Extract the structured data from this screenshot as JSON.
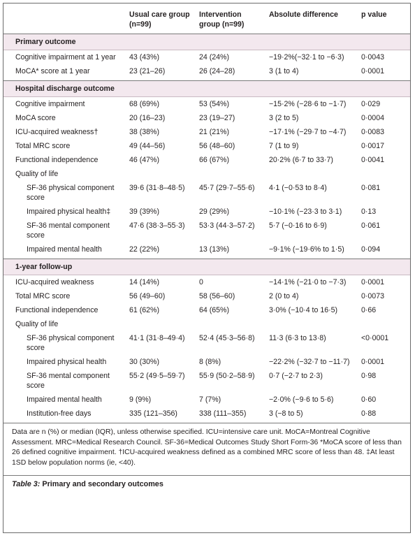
{
  "table": {
    "header": [
      "Usual care group (n=99)",
      "Intervention group (n=99)",
      "Absolute difference",
      "p value"
    ],
    "sections": [
      {
        "title": "Primary outcome",
        "rows": [
          [
            "Cognitive impairment at 1 year",
            "43 (43%)",
            "24 (24%)",
            "−19·2%(−32·1 to −6·3)",
            "0·0043"
          ],
          [
            "MoCA* score at 1 year",
            "23 (21–26)",
            "26 (24–28)",
            "3 (1 to 4)",
            "0·0001"
          ]
        ]
      },
      {
        "title": "Hospital discharge outcome",
        "rows": [
          [
            "Cognitive impairment",
            "68 (69%)",
            "53 (54%)",
            "−15·2% (−28·6 to −1·7)",
            "0·029"
          ],
          [
            "MoCA score",
            "20 (16–23)",
            "23 (19–27)",
            "3 (2 to 5)",
            "0·0004"
          ],
          [
            "ICU-acquired weakness†",
            "38 (38%)",
            "21 (21%)",
            "−17·1% (−29·7 to −4·7)",
            "0·0083"
          ],
          [
            "Total MRC score",
            "49 (44–56)",
            "56 (48–60)",
            "7 (1 to 9)",
            "0·0017"
          ],
          [
            "Functional independence",
            "46 (47%)",
            "66 (67%)",
            "20·2% (6·7 to 33·7)",
            "0·0041"
          ],
          {
            "label": "Quality of life",
            "rows": [
              [
                "SF-36 physical component score",
                "39·6 (31·8–48·5)",
                "45·7 (29·7–55·6)",
                "4·1 (−0·53 to 8·4)",
                "0·081"
              ],
              [
                "Impaired physical health‡",
                "39 (39%)",
                "29 (29%)",
                "−10·1% (−23·3 to 3·1)",
                "0·13"
              ],
              [
                "SF-36 mental component score",
                "47·6 (38·3–55·3)",
                "53·3 (44·3–57·2)",
                "5·7 (−0·16 to 6·9)",
                "0·061"
              ],
              [
                "Impaired mental health",
                "22 (22%)",
                "13 (13%)",
                "−9·1% (−19·6% to 1·5)",
                "0·094"
              ]
            ]
          }
        ]
      },
      {
        "title": "1-year follow-up",
        "rows": [
          [
            "ICU-acquired weakness",
            "14 (14%)",
            "0",
            "−14·1% (−21·0 to −7·3)",
            "0·0001"
          ],
          [
            "Total MRC score",
            "56 (49–60)",
            "58 (56–60)",
            "2 (0 to 4)",
            "0·0073"
          ],
          [
            "Functional independence",
            "61 (62%)",
            "64 (65%)",
            "3·0% (−10·4 to 16·5)",
            "0·66"
          ],
          {
            "label": "Quality of life",
            "rows": [
              [
                "SF-36 physical component score",
                "41·1 (31·8–49·4)",
                "52·4 (45·3–56·8)",
                "11·3 (6·3 to 13·8)",
                "<0·0001"
              ],
              [
                "Impaired physical health",
                "30 (30%)",
                "8 (8%)",
                "−22·2% (−32·7 to −11·7)",
                "0·0001"
              ],
              [
                "SF-36 mental component score",
                "55·2 (49·5–59·7)",
                "55·9 (50·2–58·9)",
                "0·7 (−2·7 to 2·3)",
                "0·98"
              ],
              [
                "Impaired mental health",
                "9 (9%)",
                "7 (7%)",
                "−2·0% (−9·6 to 5·6)",
                "0·60"
              ],
              [
                "Institution-free days",
                "335 (121–356)",
                "338 (111–355)",
                "3 (−8 to 5)",
                "0·88"
              ]
            ]
          }
        ]
      }
    ],
    "footnote": "Data are n (%) or median (IQR), unless otherwise specified. ICU=intensive care unit. MoCA=Montreal Cognitive Assessment. MRC=Medical Research Council. SF-36=Medical Outcomes Study Short Form-36 *MoCA score of less than 26 defined cognitive impairment. †ICU-acquired weakness defined as a combined MRC score of less than 48. ‡At least 1SD below population norms (ie, <40).",
    "caption": {
      "label": "Table 3:",
      "text": "Primary and secondary outcomes"
    }
  }
}
